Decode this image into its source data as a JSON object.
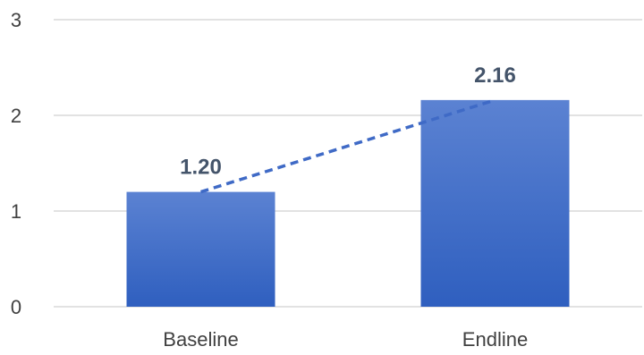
{
  "chart_data": {
    "type": "bar",
    "categories": [
      "Baseline",
      "Endline"
    ],
    "values": [
      1.2,
      2.16
    ],
    "data_labels": [
      "1.20",
      "2.16"
    ],
    "title": "",
    "xlabel": "",
    "ylabel": "",
    "ylim": [
      0,
      3
    ],
    "yticks": [
      "0",
      "1",
      "2",
      "3"
    ],
    "grid": true,
    "legend": "none",
    "trendline": "dashed-linear",
    "colors": {
      "bar_top": "#5b82d2",
      "bar_bottom": "#2f5fbf",
      "trendline": "#3f6ac6",
      "grid": "#d9d9d9",
      "data_label": "#44546a",
      "tick_text": "#404040"
    }
  }
}
